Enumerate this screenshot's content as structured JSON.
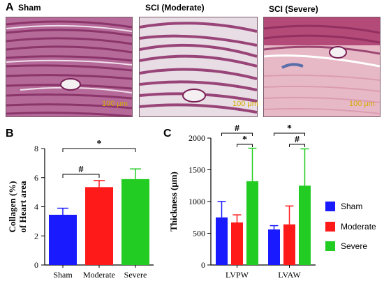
{
  "panel_a": {
    "letter": "A",
    "images": [
      {
        "label": "Sham",
        "scale": "100 μm"
      },
      {
        "label": "SCI (Moderate)",
        "scale": "100 μm"
      },
      {
        "label": "SCI (Severe)",
        "scale": "100 μm"
      }
    ]
  },
  "chart_data": [
    {
      "type": "bar",
      "letter": "B",
      "categories": [
        "Sham",
        "Moderate",
        "Severe"
      ],
      "values": [
        3.45,
        5.35,
        5.9
      ],
      "errors": [
        0.45,
        0.45,
        0.7
      ],
      "colors": [
        "#1a1aff",
        "#ff1a1a",
        "#22cc22"
      ],
      "ylabel_line1": "Collagen (%)",
      "ylabel_line2": "of Heart area",
      "ylim": [
        0,
        8
      ],
      "yticks": [
        0,
        2,
        4,
        6,
        8
      ],
      "significance": [
        {
          "from": 0,
          "to": 1,
          "symbol": "#"
        },
        {
          "from": 0,
          "to": 2,
          "symbol": "*"
        }
      ]
    },
    {
      "type": "bar",
      "letter": "C",
      "categories": [
        "LVPW",
        "LVAW"
      ],
      "series": [
        {
          "name": "Sham",
          "color": "#1a1aff",
          "values": [
            750,
            560
          ],
          "errors": [
            250,
            60
          ]
        },
        {
          "name": "Moderate",
          "color": "#ff1a1a",
          "values": [
            670,
            640
          ],
          "errors": [
            120,
            290
          ]
        },
        {
          "name": "Severe",
          "color": "#22cc22",
          "values": [
            1320,
            1250
          ],
          "errors": [
            520,
            580
          ]
        }
      ],
      "ylabel": "Thickness (μm)",
      "ylim": [
        0,
        2000
      ],
      "yticks": [
        0,
        500,
        1000,
        1500,
        2000
      ],
      "significance": [
        {
          "group": 0,
          "from": 0,
          "to": 2,
          "symbol": "#"
        },
        {
          "group": 0,
          "from": 1,
          "to": 2,
          "symbol": "*"
        },
        {
          "group": 1,
          "from": 0,
          "to": 2,
          "symbol": "*"
        },
        {
          "group": 1,
          "from": 1,
          "to": 2,
          "symbol": "#"
        }
      ]
    }
  ]
}
